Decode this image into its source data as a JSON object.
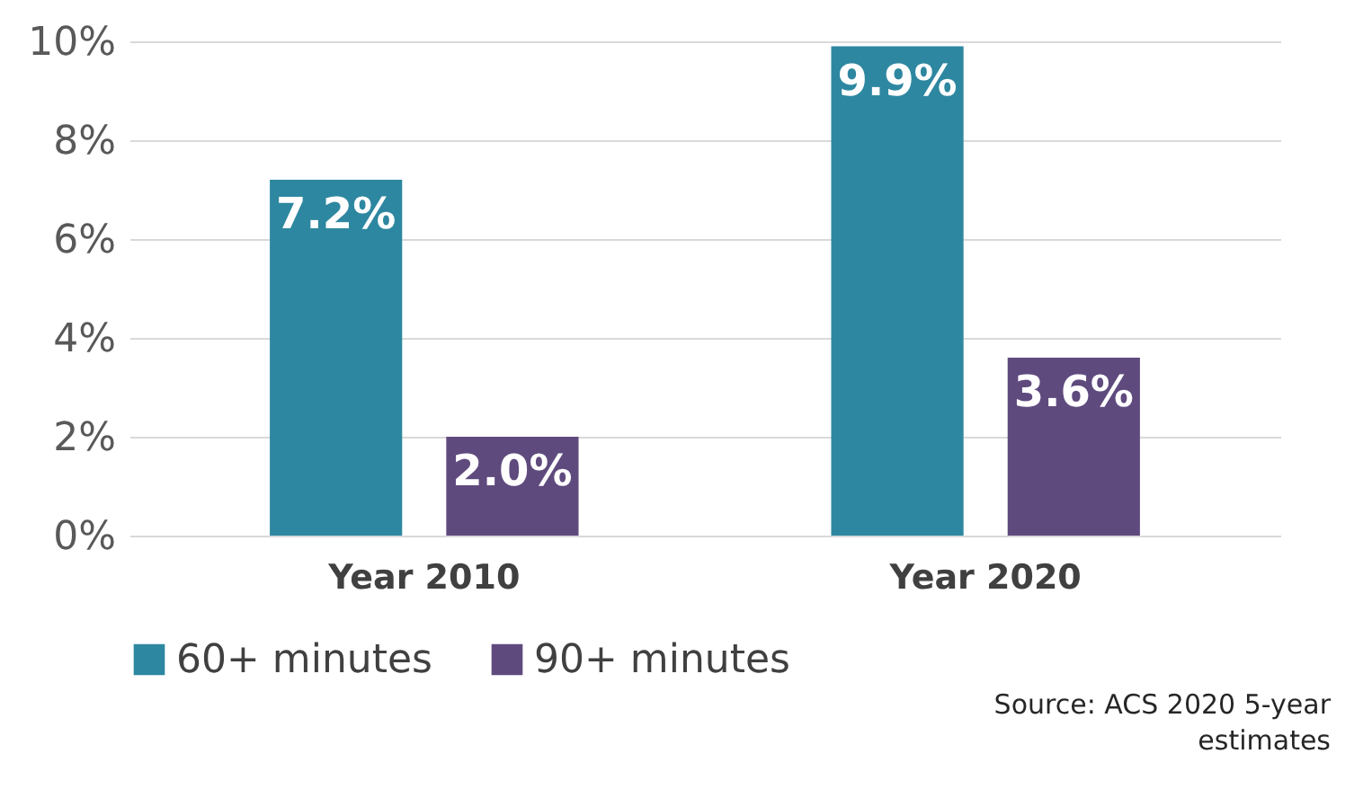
{
  "chart_data": {
    "type": "bar",
    "categories": [
      "Year 2010",
      "Year 2020"
    ],
    "series": [
      {
        "name": "60+ minutes",
        "color": "#2e87a0",
        "values": [
          7.2,
          9.9
        ],
        "value_labels": [
          "7.2%",
          "9.9%"
        ]
      },
      {
        "name": "90+ minutes",
        "color": "#5f4a7e",
        "values": [
          2.0,
          3.6
        ],
        "value_labels": [
          "2.0%",
          "3.6%"
        ]
      }
    ],
    "ylim": [
      0,
      10
    ],
    "yticks": [
      {
        "value": 0,
        "label": "0%"
      },
      {
        "value": 2,
        "label": "2%"
      },
      {
        "value": 4,
        "label": "4%"
      },
      {
        "value": 6,
        "label": "6%"
      },
      {
        "value": 8,
        "label": "8%"
      },
      {
        "value": 10,
        "label": "10%"
      }
    ],
    "grid": "y",
    "legend": "bottom left",
    "annotations": [
      "Source: ACS 2020 5-year estimates"
    ]
  }
}
